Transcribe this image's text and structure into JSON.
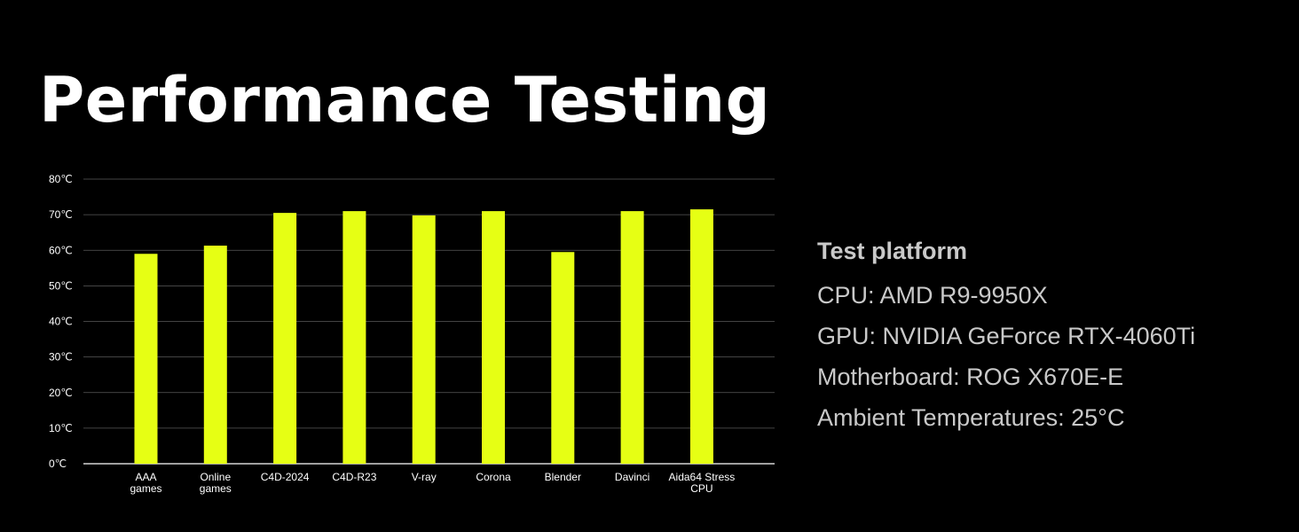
{
  "title": "Performance Testing",
  "colors": {
    "background": "#000000",
    "bar": "#e6ff14",
    "grid": "#5a5a5a",
    "text": "#ffffff",
    "spec_text": "#c9c9c9"
  },
  "chart_data": {
    "type": "bar",
    "categories": [
      [
        "AAA",
        "games"
      ],
      [
        "Online",
        "games"
      ],
      [
        "C4D-2024"
      ],
      [
        "C4D-R23"
      ],
      [
        "V-ray"
      ],
      [
        "Corona"
      ],
      [
        "Blender"
      ],
      [
        "Davinci"
      ],
      [
        "Aida64 Stress",
        "CPU"
      ]
    ],
    "values": [
      59,
      61.3,
      70.5,
      71,
      69.8,
      71,
      59.5,
      71,
      71.5
    ],
    "unit": "°C",
    "ylim": [
      0,
      80
    ],
    "yticks": [
      "0℃",
      "10℃",
      "20℃",
      "30℃",
      "40℃",
      "50℃",
      "60℃",
      "70℃",
      "80℃"
    ],
    "grid": true,
    "legend": "none"
  },
  "specs": {
    "title": "Test platform",
    "lines": [
      "CPU: AMD R9-9950X",
      "GPU: NVIDIA GeForce RTX-4060Ti",
      "Motherboard: ROG X670E-E",
      "Ambient Temperatures: 25°C"
    ]
  }
}
